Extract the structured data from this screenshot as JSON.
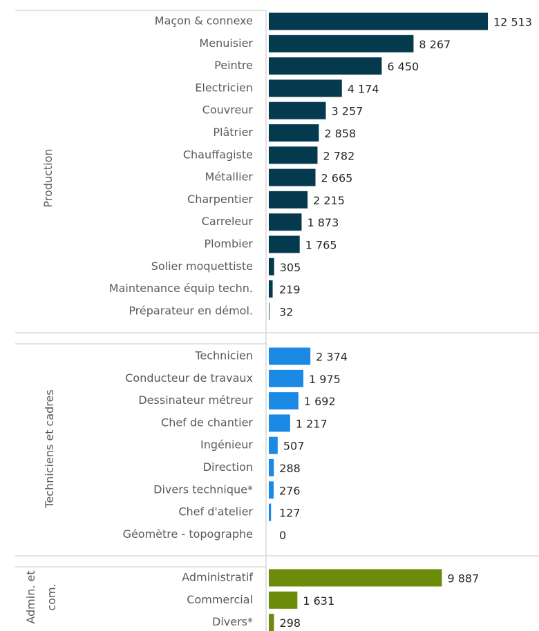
{
  "chart_data": {
    "type": "bar",
    "orientation": "horizontal",
    "groups": [
      {
        "name": "Production",
        "color": "#053a4e",
        "categories": [
          "Maçon & connexe",
          "Menuisier",
          "Peintre",
          "Electricien",
          "Couvreur",
          "Plâtrier",
          "Chauffagiste",
          "Métallier",
          "Charpentier",
          "Carreleur",
          "Plombier",
          "Solier moquettiste",
          "Maintenance équip techn.",
          "Préparateur en démol."
        ],
        "values": [
          12513,
          8267,
          6450,
          4174,
          3257,
          2858,
          2782,
          2665,
          2215,
          1873,
          1765,
          305,
          219,
          32
        ],
        "value_labels": [
          "12 513",
          "8 267",
          "6 450",
          "4 174",
          "3 257",
          "2 858",
          "2 782",
          "2 665",
          "2 215",
          "1 873",
          "1 765",
          "305",
          "219",
          "32"
        ]
      },
      {
        "name": "Techniciens et cadres",
        "color": "#1b8ae4",
        "categories": [
          "Technicien",
          "Conducteur de travaux",
          "Dessinateur métreur",
          "Chef de chantier",
          "Ingénieur",
          "Direction",
          "Divers technique*",
          "Chef d'atelier",
          "Géomètre - topographe"
        ],
        "values": [
          2374,
          1975,
          1692,
          1217,
          507,
          288,
          276,
          127,
          0
        ],
        "value_labels": [
          "2 374",
          "1 975",
          "1 692",
          "1 217",
          "507",
          "288",
          "276",
          "127",
          "0"
        ]
      },
      {
        "name": "Admin. et com.",
        "color": "#6a8c0a",
        "categories": [
          "Administratif",
          "Commercial",
          "Divers*"
        ],
        "values": [
          9887,
          1631,
          298
        ],
        "value_labels": [
          "9 887",
          "1 631",
          "298"
        ]
      }
    ]
  }
}
